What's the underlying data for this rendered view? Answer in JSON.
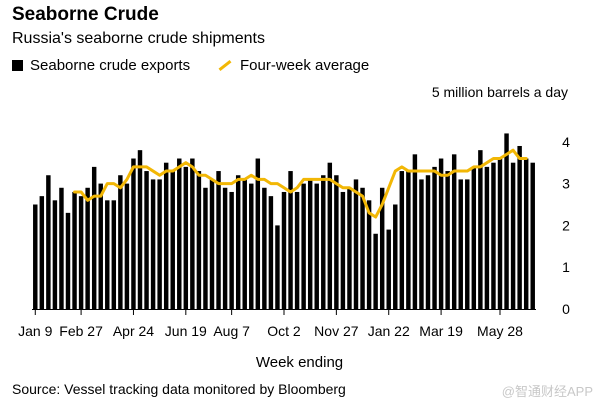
{
  "chart_data": {
    "type": "bar",
    "title": "Seaborne Crude",
    "subtitle": "Russia's seaborne crude shipments",
    "unit_label": "5 million barrels a day",
    "xlabel": "Week ending",
    "source": "Source: Vessel tracking data monitored by Bloomberg",
    "legend": {
      "placement": "top-left",
      "bar_label": "Seaborne crude exports",
      "line_label": "Four-week average"
    },
    "ylim": [
      0,
      5
    ],
    "yticks": [
      "0",
      "1",
      "2",
      "3",
      "4"
    ],
    "xtick_labels": [
      "Jan 9",
      "Feb 27",
      "Apr 24",
      "Jun 19",
      "Aug 7",
      "Oct 2",
      "Nov 27",
      "Jan 22",
      "Mar 19",
      "May 28"
    ],
    "xtick_index": [
      0,
      7,
      15,
      23,
      30,
      38,
      46,
      54,
      62,
      71
    ],
    "series": [
      {
        "type": "bar",
        "name": "Seaborne crude exports",
        "color": "#000000",
        "values": [
          2.5,
          2.7,
          3.2,
          2.6,
          2.9,
          2.3,
          2.8,
          2.7,
          2.9,
          3.4,
          3.0,
          2.6,
          2.6,
          3.2,
          3.0,
          3.6,
          3.8,
          3.3,
          3.1,
          3.1,
          3.5,
          3.3,
          3.6,
          3.4,
          3.6,
          3.3,
          2.9,
          3.1,
          3.3,
          2.9,
          2.8,
          3.2,
          3.1,
          3.0,
          3.6,
          2.9,
          2.7,
          2.0,
          2.8,
          3.3,
          2.8,
          3.0,
          3.1,
          3.0,
          3.2,
          3.5,
          3.2,
          2.8,
          2.9,
          3.1,
          2.9,
          2.6,
          1.8,
          2.9,
          1.9,
          2.5,
          3.3,
          3.3,
          3.7,
          3.1,
          3.2,
          3.4,
          3.6,
          3.3,
          3.7,
          3.1,
          3.1,
          3.4,
          3.8,
          3.4,
          3.5,
          3.6,
          4.2,
          3.5,
          3.9,
          3.6,
          3.5
        ]
      },
      {
        "type": "line",
        "name": "Four-week average",
        "color": "#f2b705",
        "start_index": 6,
        "values": [
          2.8,
          2.8,
          2.6,
          2.7,
          2.7,
          3.0,
          3.0,
          2.9,
          3.1,
          3.4,
          3.4,
          3.4,
          3.3,
          3.2,
          3.3,
          3.3,
          3.4,
          3.5,
          3.4,
          3.2,
          3.2,
          3.1,
          3.0,
          3.0,
          3.0,
          3.1,
          3.1,
          3.2,
          3.1,
          3.1,
          3.0,
          3.0,
          2.9,
          2.8,
          2.9,
          3.1,
          3.1,
          3.1,
          3.1,
          3.1,
          3.0,
          2.9,
          2.9,
          2.8,
          2.7,
          2.3,
          2.2,
          2.5,
          2.9,
          3.3,
          3.4,
          3.3,
          3.3,
          3.3,
          3.3,
          3.3,
          3.2,
          3.2,
          3.3,
          3.3,
          3.3,
          3.4,
          3.4,
          3.5,
          3.6,
          3.6,
          3.7,
          3.8,
          3.6,
          3.6
        ]
      }
    ]
  },
  "footer": {
    "watermark": "@智通财经APP"
  }
}
